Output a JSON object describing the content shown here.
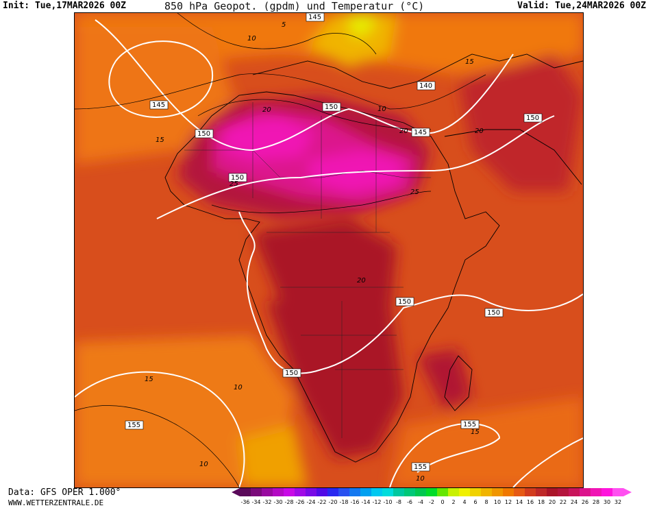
{
  "header": {
    "init": "Init: Tue,17MAR2026 00Z",
    "title": "850 hPa Geopot. (gpdm) und Temperatur (°C)",
    "valid": "Valid: Tue,24MAR2026 00Z"
  },
  "footer": {
    "data_source": "Data: GFS OPER 1.000°",
    "website": "WWW.WETTERZENTRALE.DE"
  },
  "geopotential_labels": [
    "145",
    "145",
    "150",
    "150",
    "140",
    "145",
    "150",
    "150",
    "150",
    "150",
    "150",
    "155",
    "155",
    "155"
  ],
  "temperature_labels": [
    "5",
    "10",
    "10",
    "15",
    "15",
    "20",
    "20",
    "20",
    "25",
    "20",
    "25",
    "10",
    "15",
    "15",
    "10",
    "10"
  ],
  "legend": {
    "values": [
      "-36",
      "-34",
      "-32",
      "-30",
      "-28",
      "-26",
      "-24",
      "-22",
      "-20",
      "-18",
      "-16",
      "-14",
      "-12",
      "-10",
      "-8",
      "-6",
      "-4",
      "-2",
      "0",
      "2",
      "4",
      "6",
      "8",
      "10",
      "12",
      "14",
      "16",
      "18",
      "20",
      "22",
      "24",
      "26",
      "28",
      "30",
      "32"
    ],
    "colors": [
      "#5a0a5a",
      "#7a0a7a",
      "#990aa0",
      "#b40ac4",
      "#c80ae6",
      "#a00ae6",
      "#780ae6",
      "#500ae6",
      "#2828f0",
      "#2850f0",
      "#1478f0",
      "#00a0f0",
      "#00c8f0",
      "#00dcdc",
      "#00c8a0",
      "#00c878",
      "#00c850",
      "#00dc28",
      "#64e600",
      "#c8f000",
      "#f0f000",
      "#f0d200",
      "#f0b400",
      "#f09600",
      "#f07800",
      "#e65a14",
      "#d23c1e",
      "#be2828",
      "#aa1428",
      "#b4143c",
      "#c8145a",
      "#dc148c",
      "#f014b4",
      "#ff14dc",
      "#ff50f0"
    ]
  }
}
